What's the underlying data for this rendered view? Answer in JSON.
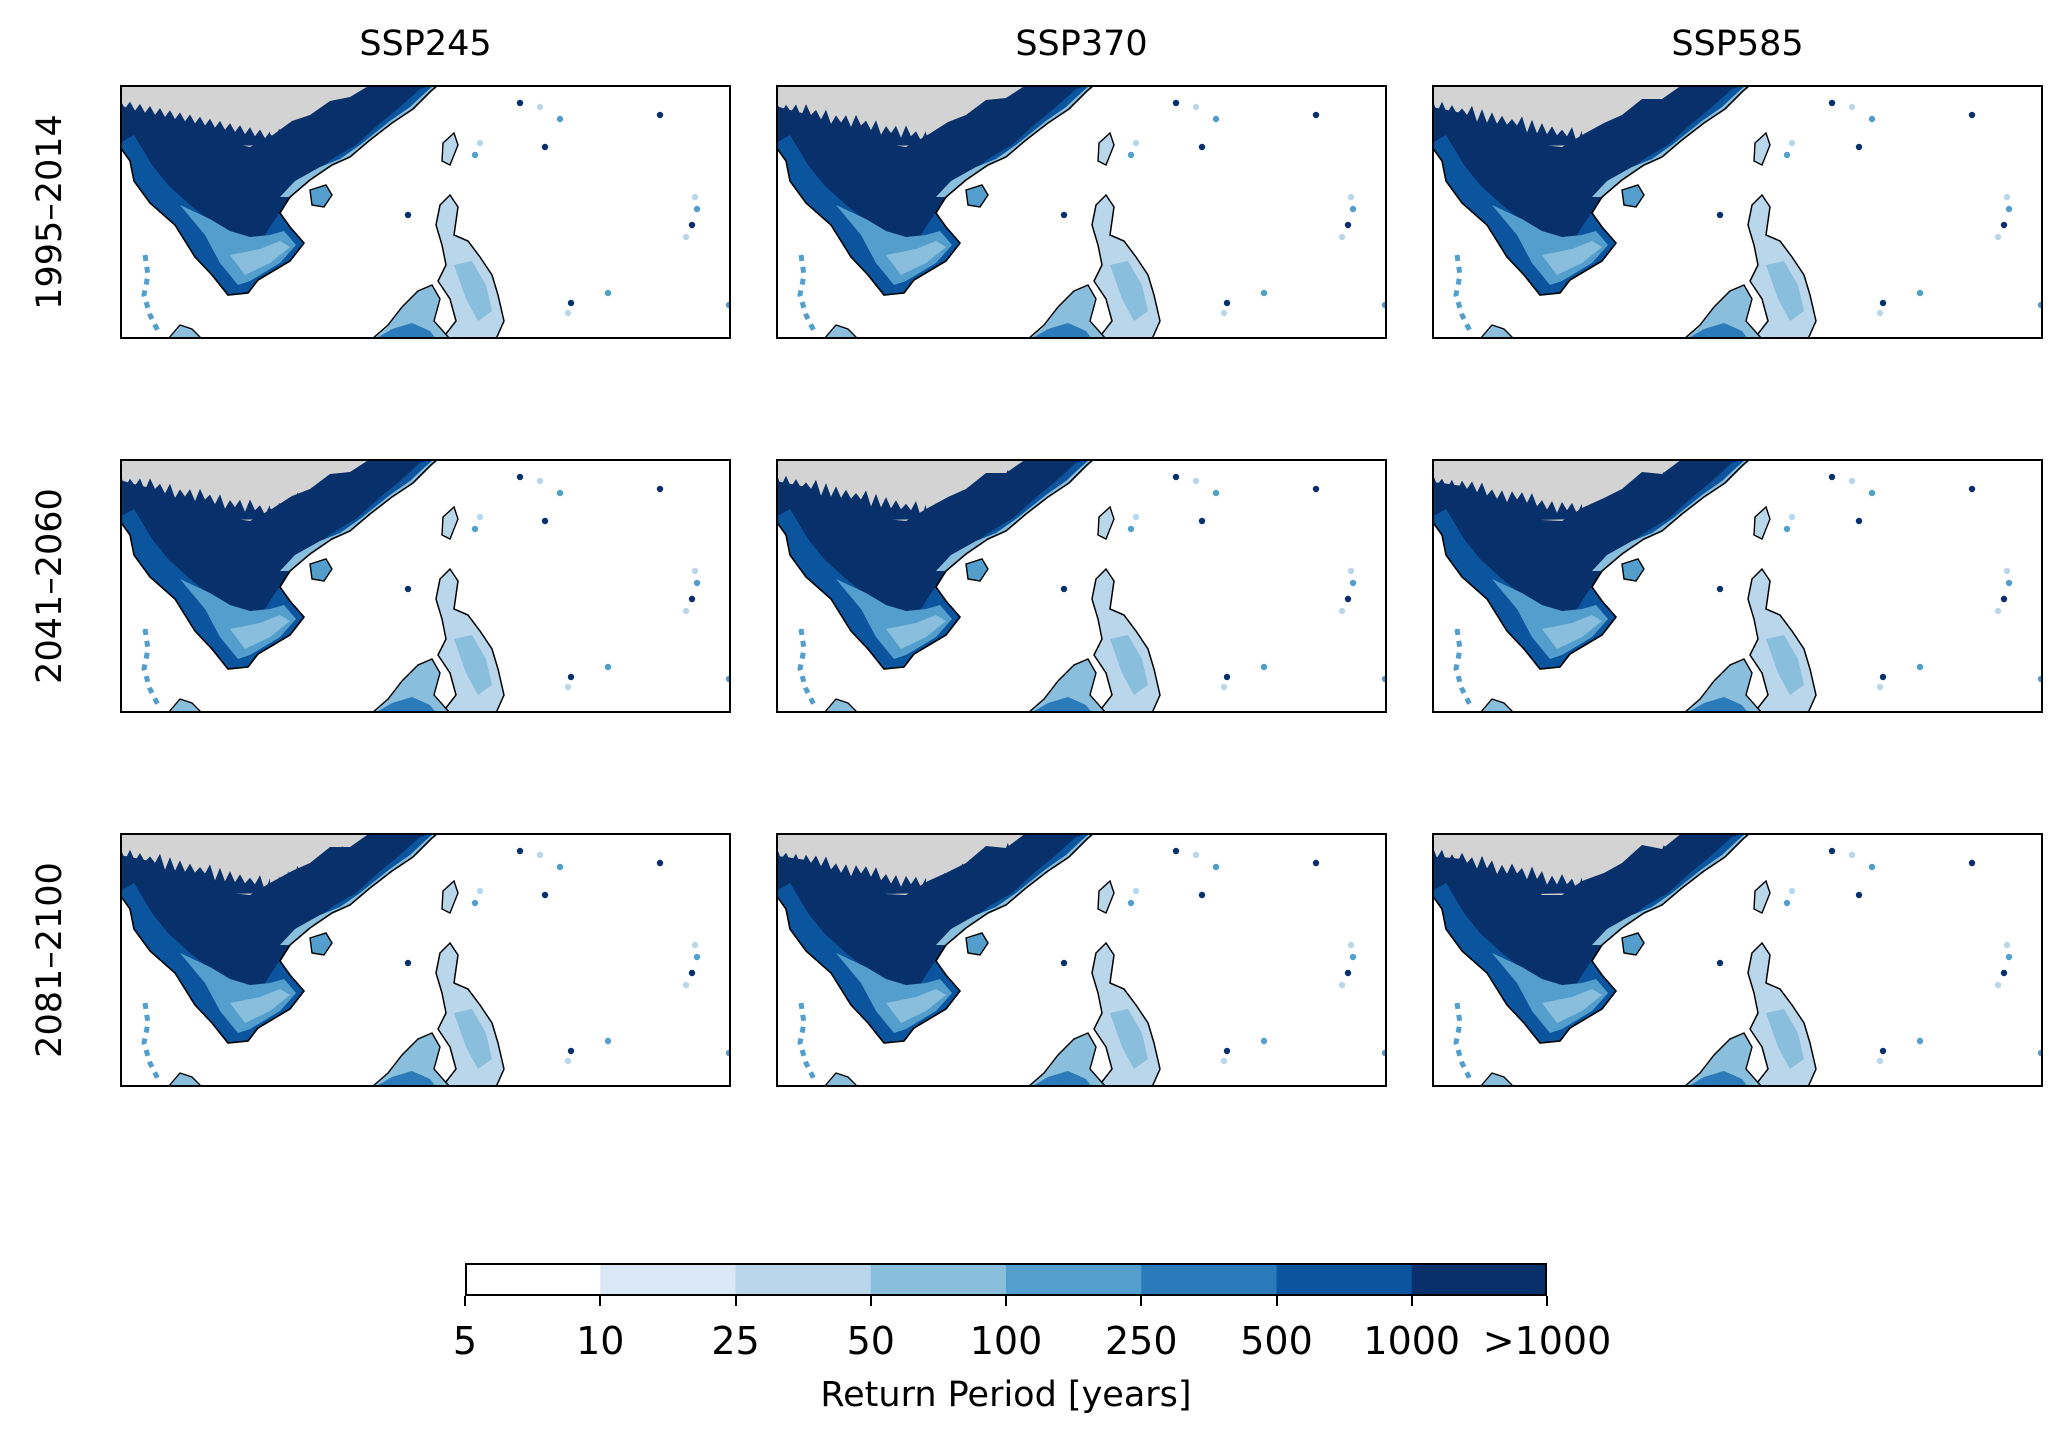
{
  "columns": [
    "SSP245",
    "SSP370",
    "SSP585"
  ],
  "rows": [
    "1995–2014",
    "2041–2060",
    "2081–2100"
  ],
  "colorbar": {
    "label": "Return Period [years]",
    "ticks": [
      "5",
      "10",
      "25",
      "50",
      "100",
      "250",
      "500",
      "1000",
      ">1000"
    ],
    "colors": [
      "#ffffff",
      "#dbe9f6",
      "#bad6eb",
      "#89bedc",
      "#539ecd",
      "#2b7bba",
      "#0b559f",
      "#08306b"
    ]
  },
  "colors": {
    "land_no_data": "#d3d3d3",
    "coast": "#000000"
  }
}
